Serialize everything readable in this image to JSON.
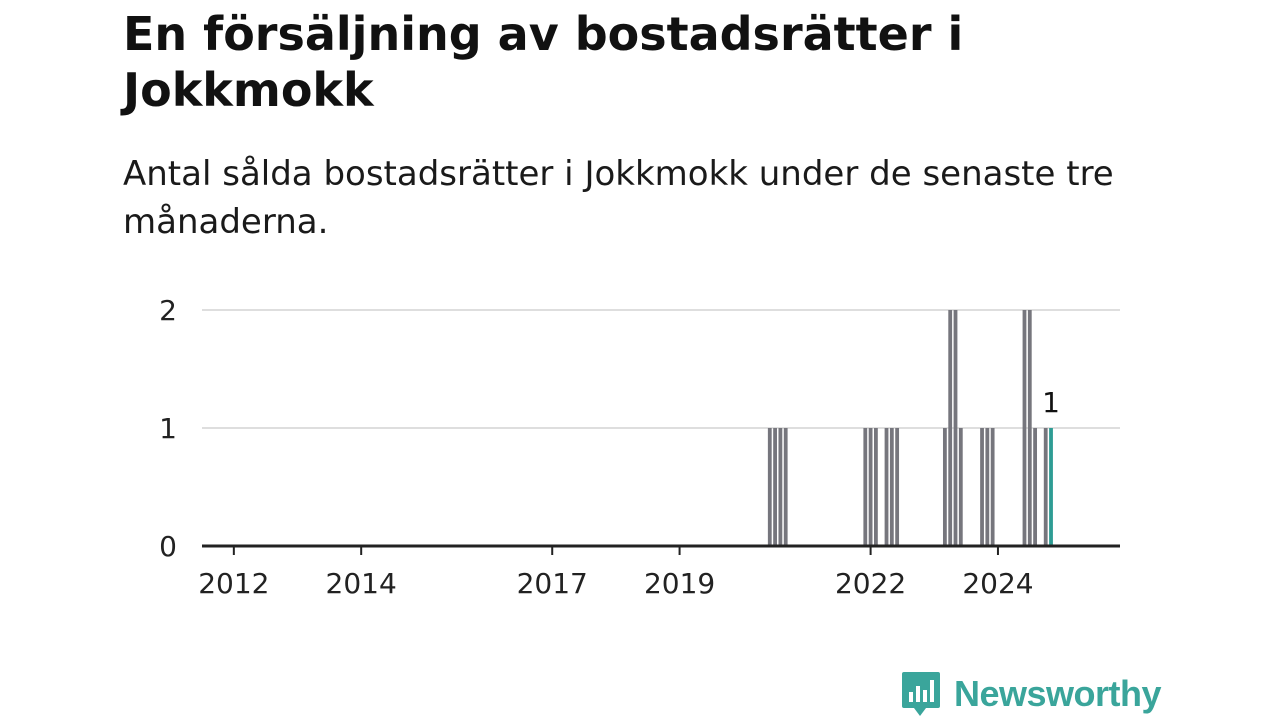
{
  "title": "En försäljning av bostadsrätter i Jokkmokk",
  "subtitle": "Antal sålda bostadsrätter i Jokkmokk under de senaste tre månaderna.",
  "brand": {
    "name": "Newsworthy",
    "color": "#3aa59b"
  },
  "colors": {
    "bar": "#76767d",
    "highlight": "#2e9c94",
    "grid": "#dedede",
    "axis": "#222222"
  },
  "chart_data": {
    "type": "bar",
    "x_ticks": [
      "2012",
      "2014",
      "2017",
      "2019",
      "2022",
      "2024"
    ],
    "y_ticks": [
      0,
      1,
      2
    ],
    "ylim": [
      0,
      2
    ],
    "xlim": [
      "2011-07",
      "2025-12"
    ],
    "values": [
      {
        "month": "2020-06",
        "value": 1
      },
      {
        "month": "2020-07",
        "value": 1
      },
      {
        "month": "2020-08",
        "value": 1
      },
      {
        "month": "2020-09",
        "value": 1
      },
      {
        "month": "2021-12",
        "value": 1
      },
      {
        "month": "2022-01",
        "value": 1
      },
      {
        "month": "2022-02",
        "value": 1
      },
      {
        "month": "2022-04",
        "value": 1
      },
      {
        "month": "2022-05",
        "value": 1
      },
      {
        "month": "2022-06",
        "value": 1
      },
      {
        "month": "2023-03",
        "value": 1
      },
      {
        "month": "2023-04",
        "value": 2
      },
      {
        "month": "2023-05",
        "value": 2
      },
      {
        "month": "2023-06",
        "value": 1
      },
      {
        "month": "2023-10",
        "value": 1
      },
      {
        "month": "2023-11",
        "value": 1
      },
      {
        "month": "2023-12",
        "value": 1
      },
      {
        "month": "2024-06",
        "value": 2
      },
      {
        "month": "2024-07",
        "value": 2
      },
      {
        "month": "2024-08",
        "value": 1
      },
      {
        "month": "2024-10",
        "value": 1
      },
      {
        "month": "2024-11",
        "value": 1,
        "highlight": true
      }
    ],
    "annotation": {
      "month": "2024-11",
      "label": "1"
    }
  }
}
